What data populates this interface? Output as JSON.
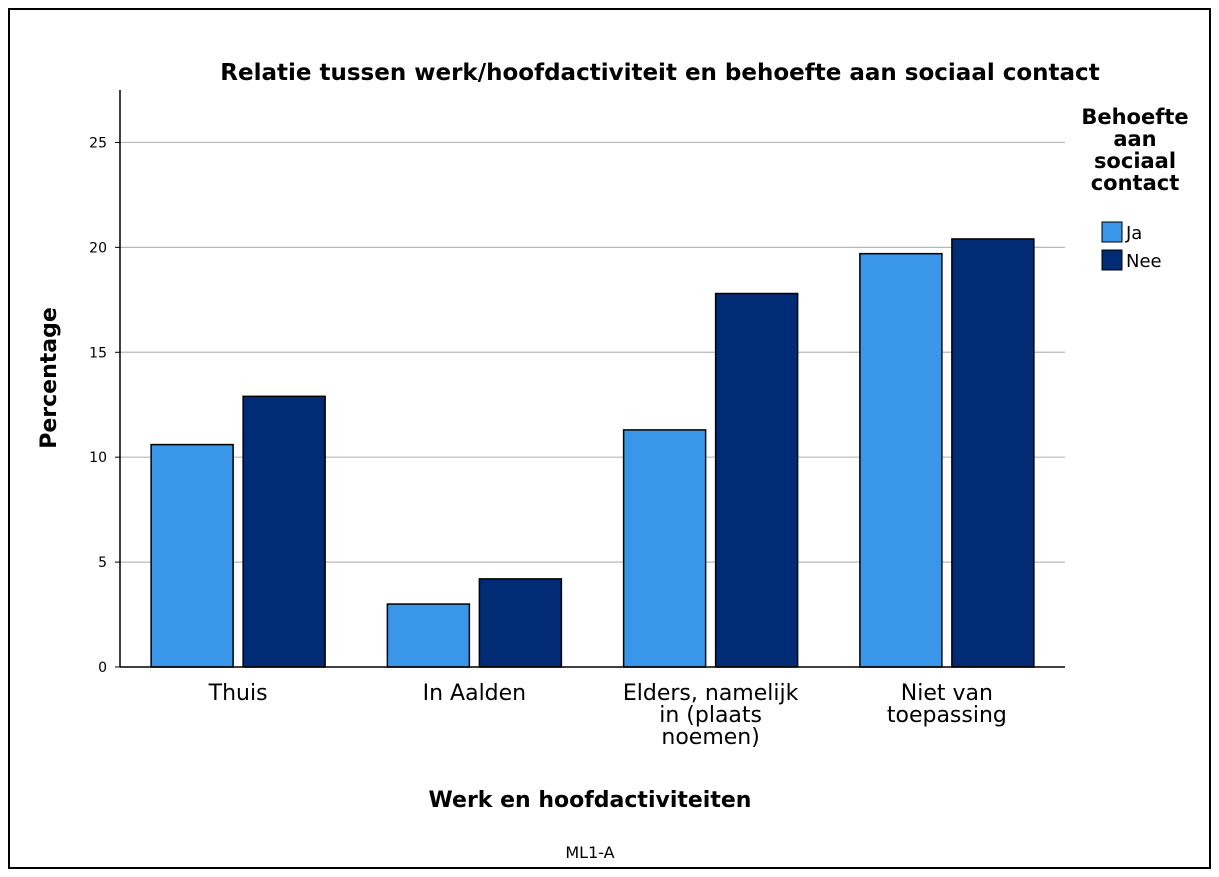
{
  "chart_data": {
    "type": "bar",
    "title": "Relatie tussen werk/hoofdactiviteit en behoefte aan sociaal contact",
    "xlabel": "Werk en hoofdactiviteiten",
    "ylabel": "Percentage",
    "footnote": "ML1-A",
    "categories": [
      [
        "Thuis"
      ],
      [
        "In Aalden"
      ],
      [
        "Elders, namelijk",
        "in (plaats",
        "noemen)"
      ],
      [
        "Niet van",
        "toepassing"
      ]
    ],
    "series": [
      {
        "name": "Ja",
        "values": [
          10.6,
          3.0,
          11.3,
          19.7
        ],
        "color": "#3a96e8"
      },
      {
        "name": "Nee",
        "values": [
          12.9,
          4.2,
          17.8,
          20.4
        ],
        "color": "#022b75"
      }
    ],
    "ylim": [
      0,
      27.5
    ],
    "yticks": [
      0,
      5,
      10,
      15,
      20,
      25
    ],
    "grid": true,
    "legend": {
      "title": [
        "Behoefte",
        "aan",
        "sociaal",
        "contact"
      ],
      "placement": "top-right"
    }
  }
}
